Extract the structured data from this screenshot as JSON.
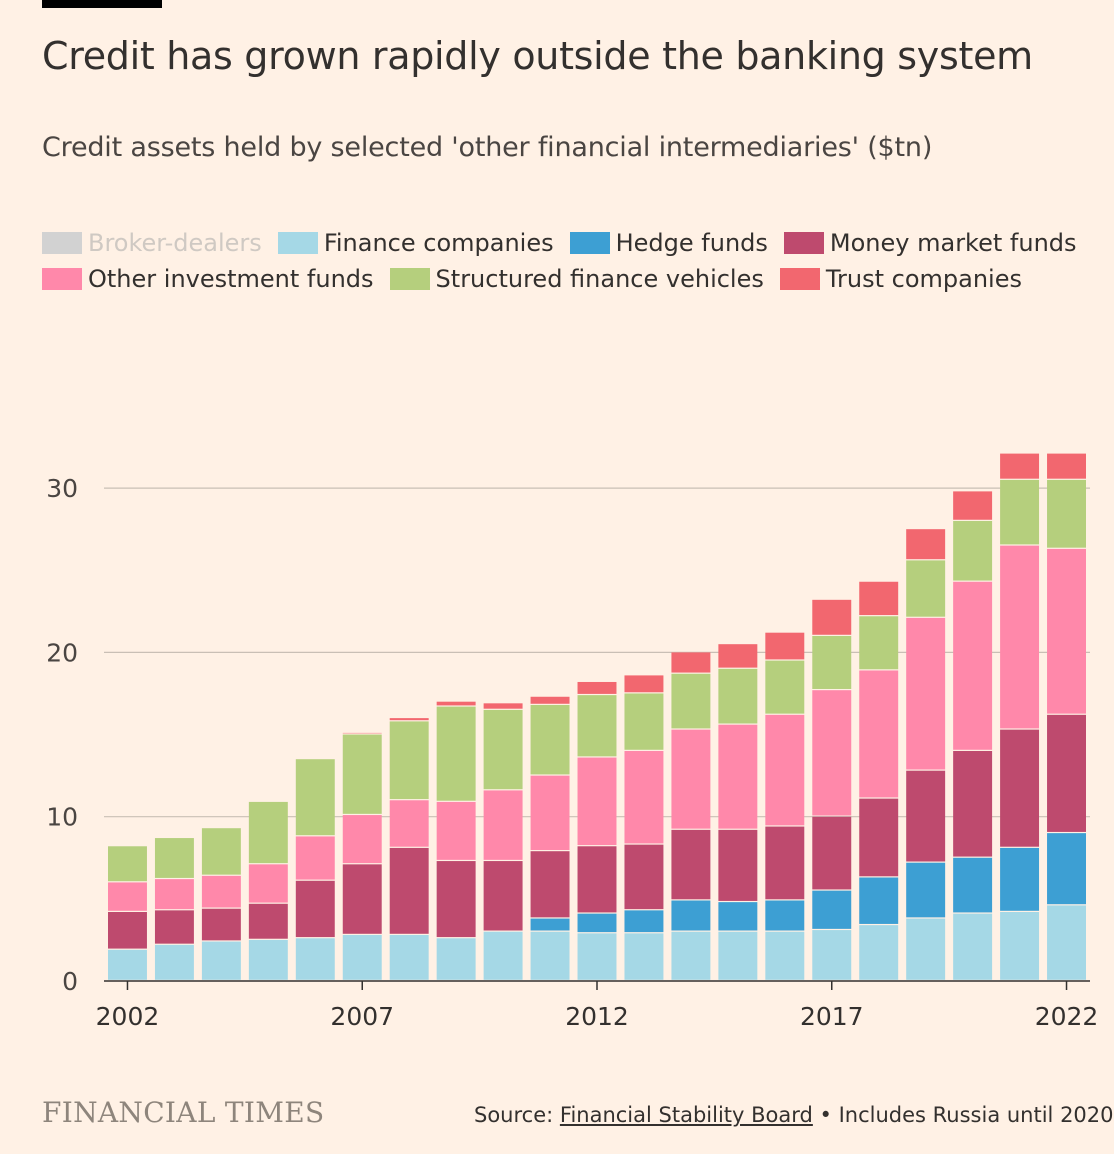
{
  "header": {
    "title": "Credit has grown rapidly outside the banking system",
    "subtitle": "Credit assets held by selected 'other financial intermediaries' ($tn)"
  },
  "footer": {
    "brand": "FINANCIAL TIMES",
    "source_prefix": "Source: ",
    "source_link": "Financial Stability Board",
    "source_suffix": " • Includes Russia until 2020"
  },
  "chart_data": {
    "type": "bar",
    "stacked": true,
    "title": "Credit has grown rapidly outside the banking system",
    "subtitle": "Credit assets held by selected 'other financial intermediaries' ($tn)",
    "xlabel": "",
    "ylabel": "",
    "ylim": [
      0,
      33
    ],
    "yticks": [
      0,
      10,
      20,
      30
    ],
    "gridlines": true,
    "legend_position": "top",
    "categories": [
      "2002",
      "2003",
      "2004",
      "2005",
      "2006",
      "2007",
      "2008",
      "2009",
      "2010",
      "2011",
      "2012",
      "2013",
      "2014",
      "2015",
      "2016",
      "2017",
      "2018",
      "2019",
      "2020",
      "2021",
      "2022"
    ],
    "xtick_labels": [
      "2002",
      "2007",
      "2012",
      "2017",
      "2022"
    ],
    "series": [
      {
        "name": "Broker-dealers",
        "color": "#D2D2D2",
        "muted": true,
        "values": [
          0,
          0,
          0,
          0,
          0,
          0,
          0,
          0,
          0,
          0,
          0,
          0,
          0,
          0,
          0,
          0,
          0,
          0,
          0,
          0,
          0
        ]
      },
      {
        "name": "Finance companies",
        "color": "#A5D8E6",
        "values": [
          1.9,
          2.2,
          2.4,
          2.5,
          2.6,
          2.8,
          2.8,
          2.6,
          3.0,
          3.0,
          2.9,
          2.9,
          3.0,
          3.0,
          3.0,
          3.1,
          3.4,
          3.8,
          4.1,
          4.2,
          4.6
        ]
      },
      {
        "name": "Hedge funds",
        "color": "#3D9FD3",
        "values": [
          0,
          0,
          0,
          0,
          0,
          0,
          0,
          0,
          0,
          0.8,
          1.2,
          1.4,
          1.9,
          1.8,
          1.9,
          2.4,
          2.9,
          3.4,
          3.4,
          3.9,
          4.4
        ]
      },
      {
        "name": "Money market funds",
        "color": "#BE4A6E",
        "values": [
          2.3,
          2.1,
          2.0,
          2.2,
          3.5,
          4.3,
          5.3,
          4.7,
          4.3,
          4.1,
          4.1,
          4.0,
          4.3,
          4.4,
          4.5,
          4.5,
          4.8,
          5.6,
          6.5,
          7.2,
          7.2
        ]
      },
      {
        "name": "Other investment funds",
        "color": "#FF88AA",
        "values": [
          1.8,
          1.9,
          2.0,
          2.4,
          2.7,
          3.0,
          2.9,
          3.6,
          4.3,
          4.6,
          5.4,
          5.7,
          6.1,
          6.4,
          6.8,
          7.7,
          7.8,
          9.3,
          10.3,
          11.2,
          10.1
        ]
      },
      {
        "name": "Structured finance vehicles",
        "color": "#B5CF7D",
        "values": [
          2.2,
          2.5,
          2.9,
          3.8,
          4.7,
          4.9,
          4.8,
          5.8,
          4.9,
          4.3,
          3.8,
          3.5,
          3.4,
          3.4,
          3.3,
          3.3,
          3.3,
          3.5,
          3.7,
          4.0,
          4.2
        ]
      },
      {
        "name": "Trust companies",
        "color": "#F2676F",
        "values": [
          0,
          0,
          0,
          0,
          0,
          0.1,
          0.2,
          0.3,
          0.4,
          0.5,
          0.8,
          1.1,
          1.3,
          1.5,
          1.7,
          2.2,
          2.1,
          1.9,
          1.8,
          1.6,
          1.6
        ]
      }
    ]
  }
}
